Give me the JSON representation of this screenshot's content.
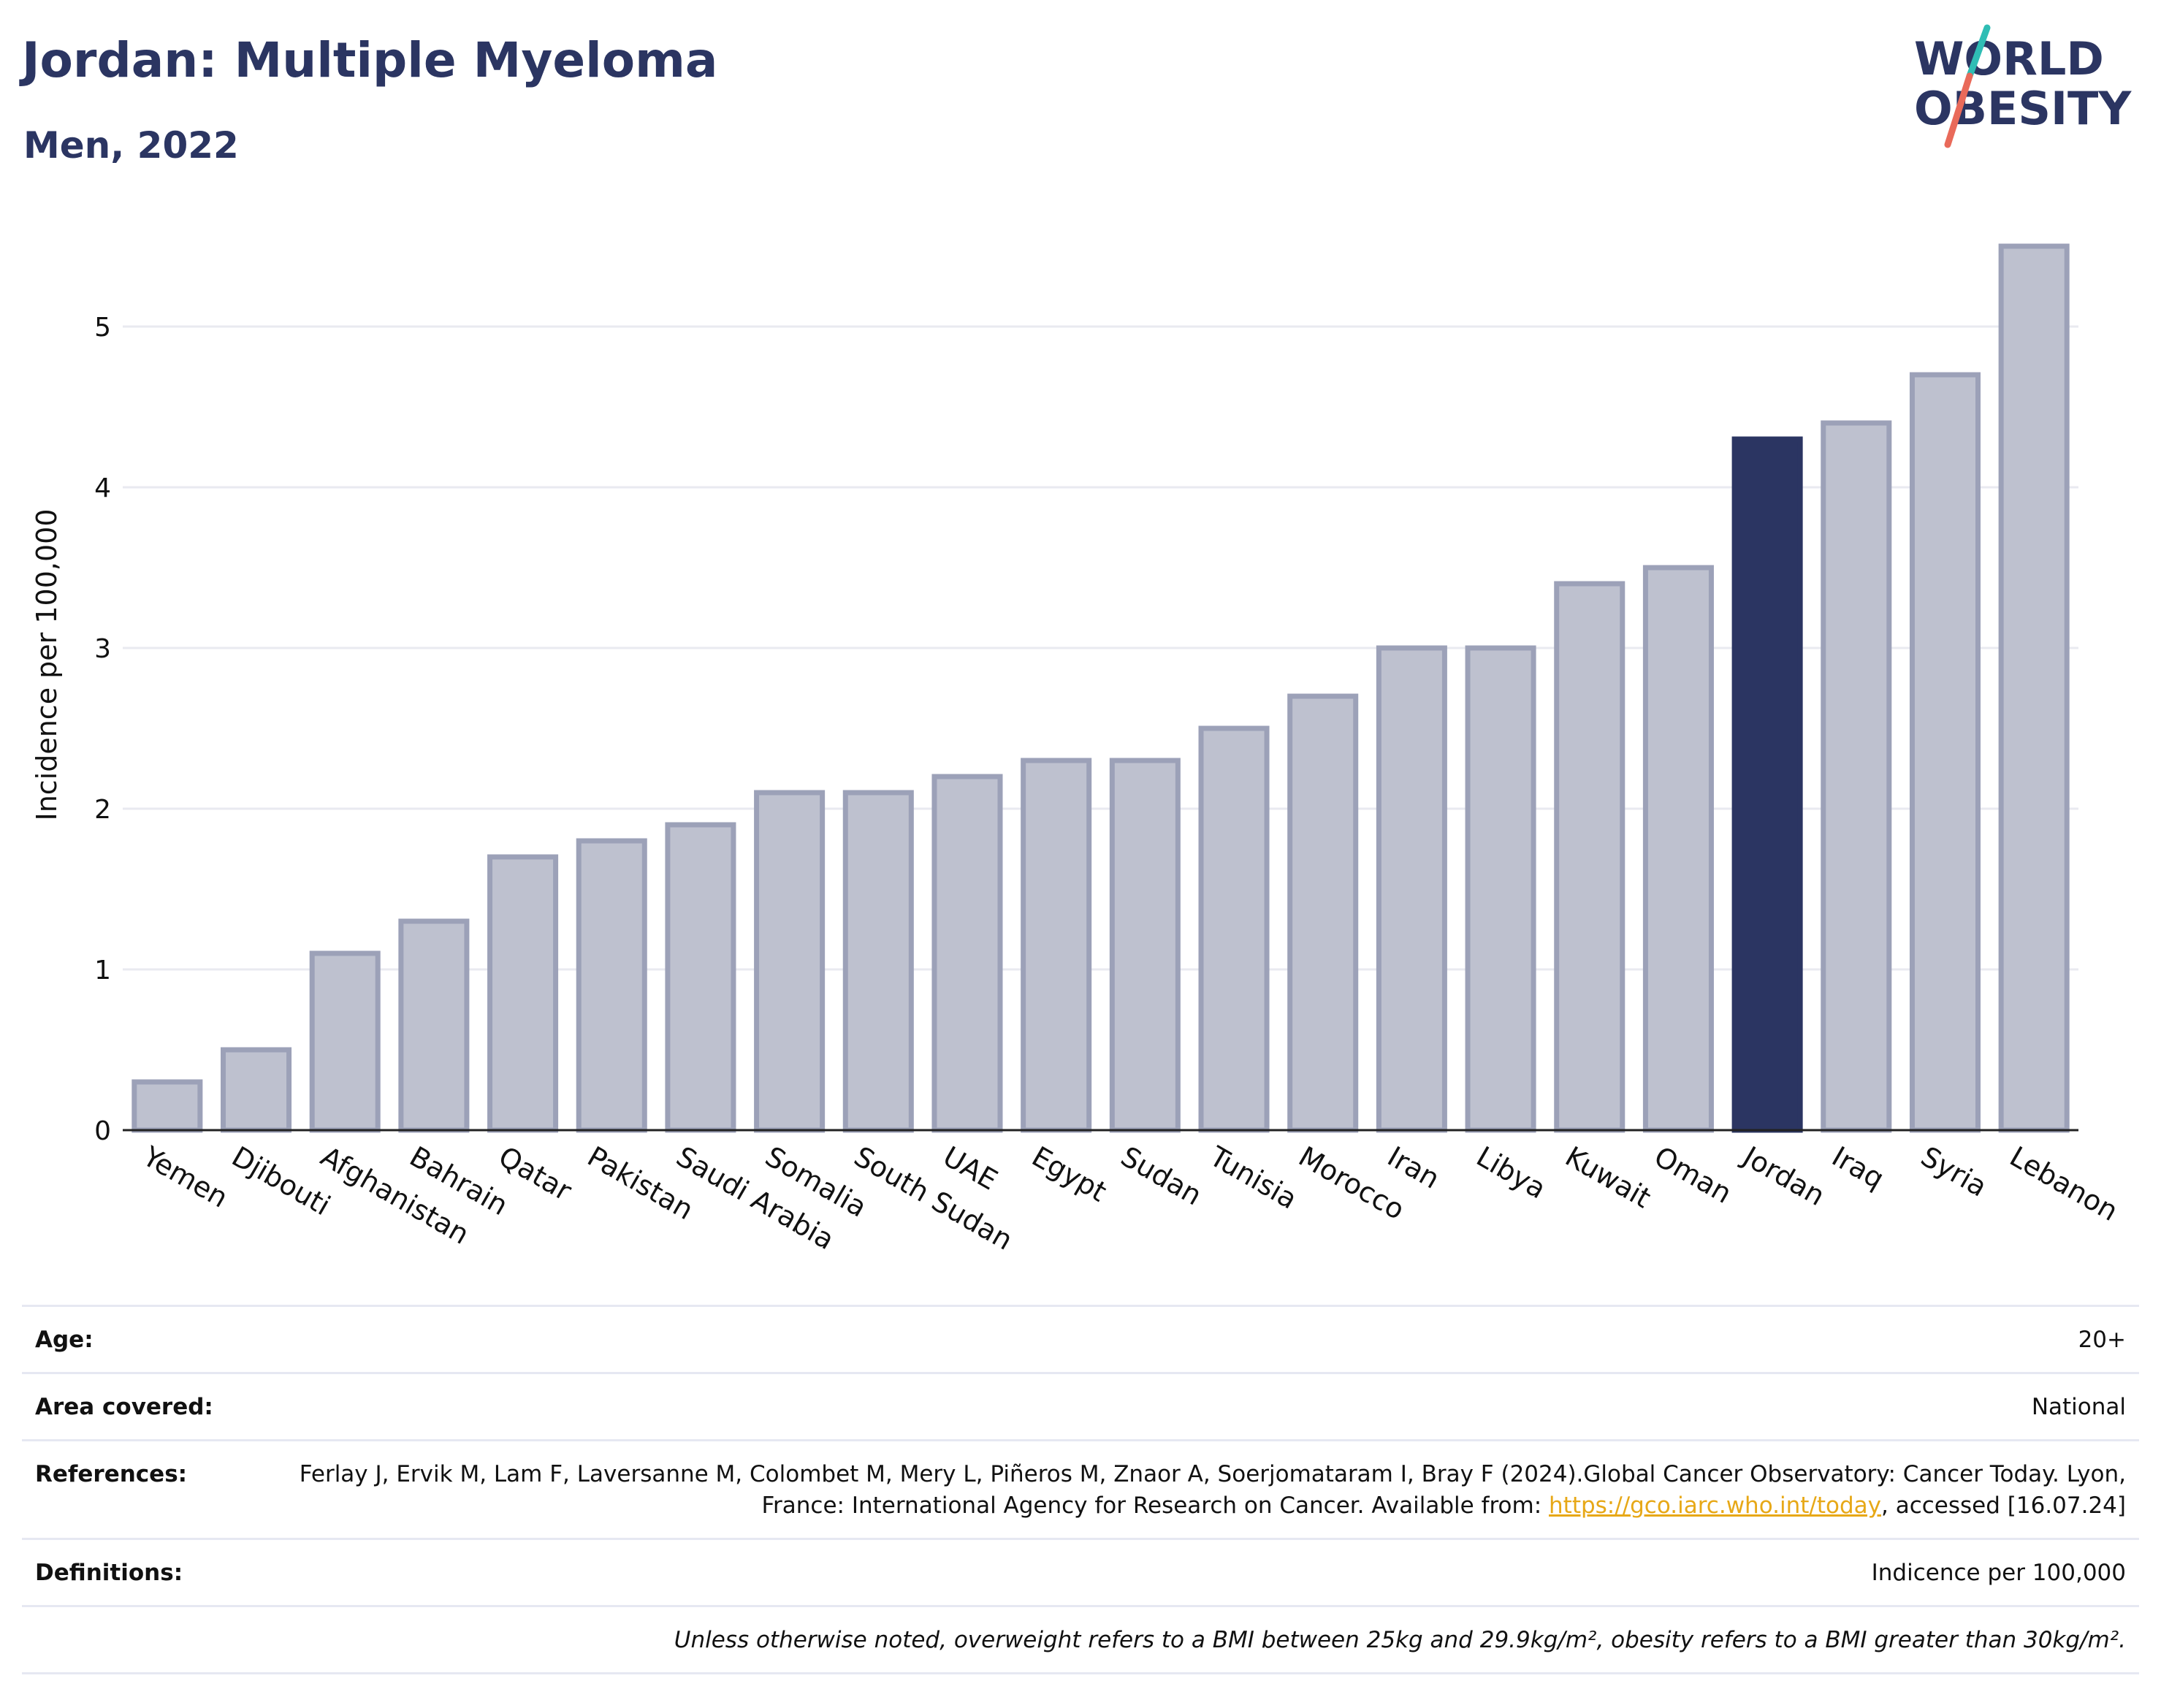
{
  "header": {
    "title": "Jordan: Multiple Myeloma",
    "subtitle": "Men, 2022"
  },
  "logo": {
    "line1": "WORLD",
    "line2": "OBESITY",
    "text_color": "#2b3562",
    "slash_colors": [
      "#2fbdb4",
      "#e96a5a"
    ]
  },
  "colors": {
    "bar_default": "#bec1cf",
    "bar_default_stroke": "#9ca1b8",
    "bar_highlight": "#2b3562",
    "gridline": "#e9eaf0",
    "axis": "#222222",
    "tick_text": "#111111",
    "link": "#e7a817"
  },
  "chart_data": {
    "type": "bar",
    "title": "",
    "ylabel": "Incidence per 100,000",
    "xlabel": "",
    "ylim": [
      0,
      5.6
    ],
    "yticks": [
      0,
      1,
      2,
      3,
      4,
      5
    ],
    "grid": true,
    "highlight": "Jordan",
    "categories": [
      "Yemen",
      "Djibouti",
      "Afghanistan",
      "Bahrain",
      "Qatar",
      "Pakistan",
      "Saudi Arabia",
      "Somalia",
      "South Sudan",
      "UAE",
      "Egypt",
      "Sudan",
      "Tunisia",
      "Morocco",
      "Iran",
      "Libya",
      "Kuwait",
      "Oman",
      "Jordan",
      "Iraq",
      "Syria",
      "Lebanon"
    ],
    "values": [
      0.3,
      0.5,
      1.1,
      1.3,
      1.7,
      1.8,
      1.9,
      2.1,
      2.1,
      2.2,
      2.3,
      2.3,
      2.5,
      2.7,
      3.0,
      3.0,
      3.4,
      3.5,
      4.3,
      4.4,
      4.7,
      5.5
    ]
  },
  "meta": {
    "age_label": "Age:",
    "age_value": "20+",
    "area_label": "Area covered:",
    "area_value": "National",
    "references_label": "References:",
    "references_text_1": "Ferlay J, Ervik M, Lam F, Laversanne M, Colombet M, Mery L, Piñeros M, Znaor A, Soerjomataram I, Bray F (2024).Global Cancer Observatory: Cancer Today. Lyon, France: International Agency for Research on Cancer. Available from: ",
    "references_link": "https://gco.iarc.who.int/today",
    "references_text_2": ", accessed [16.07.24]",
    "definitions_label": "Definitions:",
    "definitions_value": "Indicence per 100,000",
    "note": "Unless otherwise noted, overweight refers to a BMI between 25kg and 29.9kg/m², obesity refers to a BMI greater than 30kg/m²."
  }
}
